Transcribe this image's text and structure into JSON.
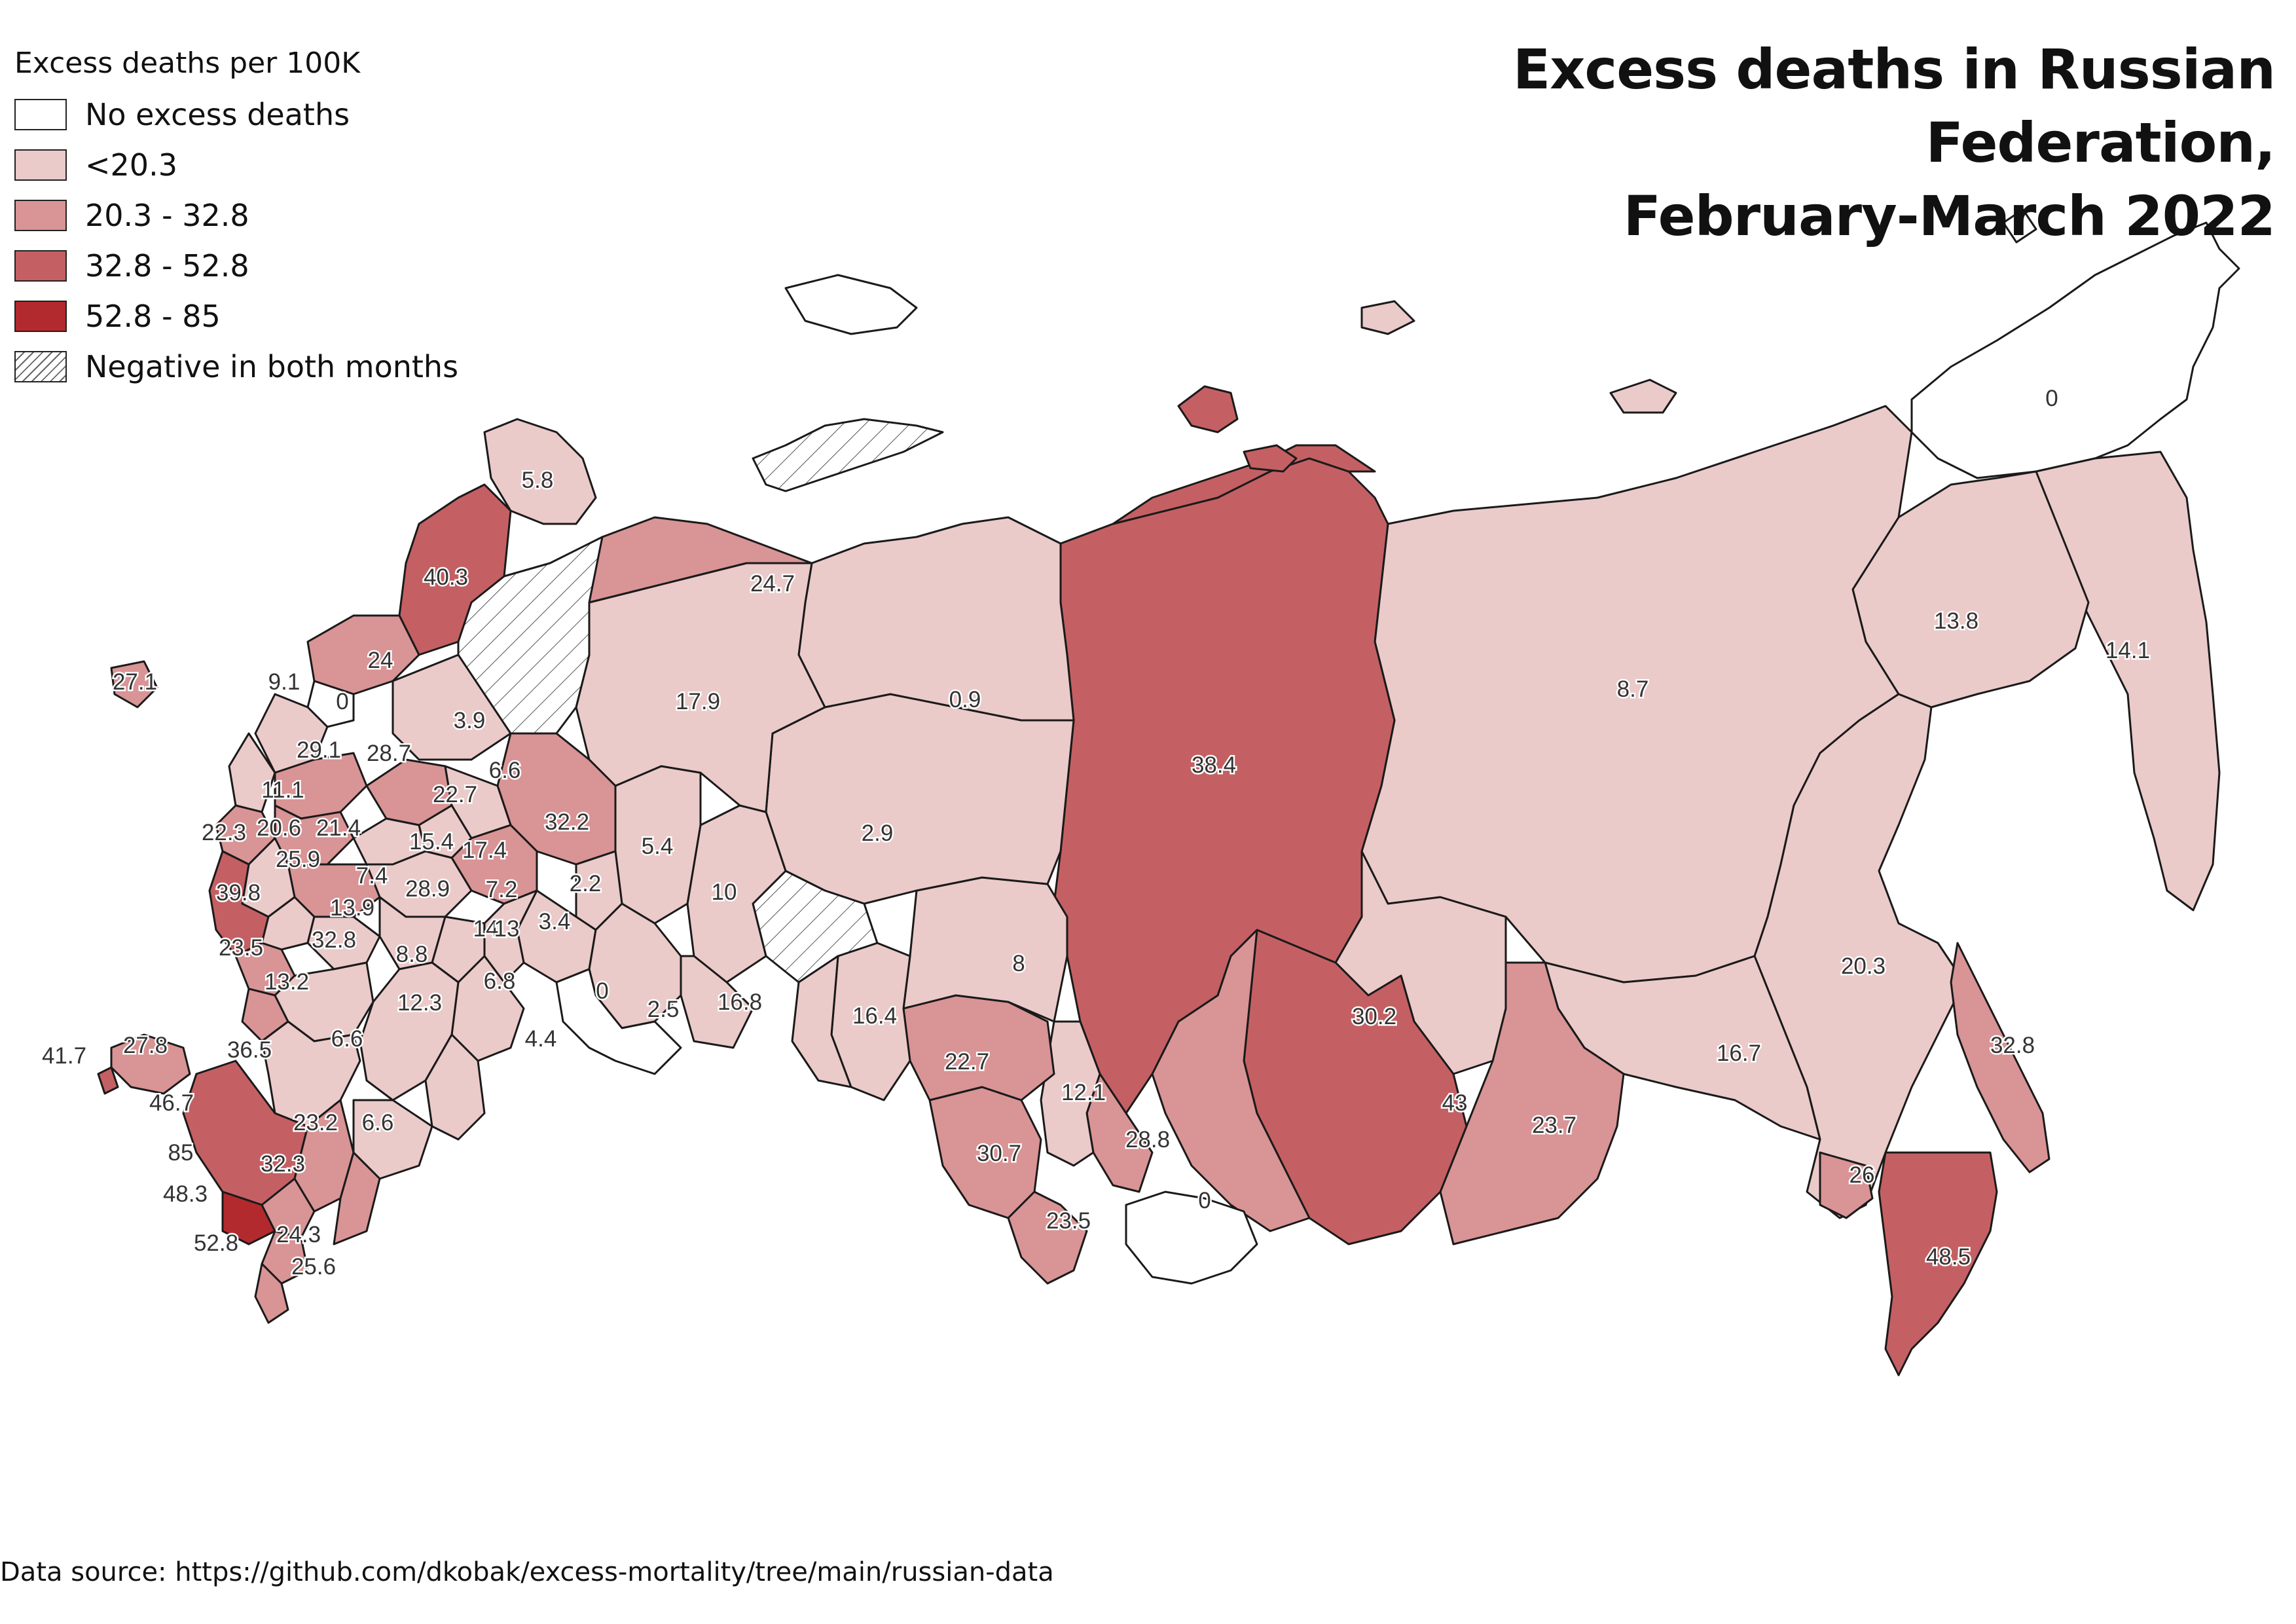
{
  "title_line1": "Excess deaths in Russian Federation,",
  "title_line2": "February-March 2022",
  "legend": {
    "title": "Excess deaths per 100K",
    "items": [
      {
        "label": "No excess deaths",
        "color": "#ffffff",
        "hatched": false
      },
      {
        "label": "<20.3",
        "color": "#ebcaca",
        "hatched": false
      },
      {
        "label": "20.3 - 32.8",
        "color": "#d99496",
        "hatched": false
      },
      {
        "label": "32.8 - 52.8",
        "color": "#c46063",
        "hatched": false
      },
      {
        "label": "52.8 - 85",
        "color": "#b22a2d",
        "hatched": false
      },
      {
        "label": "Negative in both months",
        "color": "#ffffff",
        "hatched": true
      }
    ]
  },
  "source": "Data source: https://github.com/dkobak/excess-mortality/tree/main/russian-data",
  "map_labels": [
    "0",
    "14.1",
    "13.8",
    "8.7",
    "38.4",
    "0.9",
    "2.9",
    "17.9",
    "24.7",
    "5.8",
    "40.3",
    "27.1",
    "9.1",
    "0",
    "24",
    "3.9",
    "29.1",
    "28.7",
    "6.6",
    "11.1",
    "22.7",
    "32.2",
    "22.3",
    "20.6",
    "21.4",
    "15.4",
    "17.4",
    "5.4",
    "25.9",
    "7.4",
    "7.2",
    "39.8",
    "13.9",
    "28.9",
    "2.2",
    "10",
    "14",
    "13",
    "3.4",
    "23.5",
    "32.8",
    "8.8",
    "6.8",
    "0",
    "2.5",
    "16.8",
    "16.4",
    "8",
    "30.2",
    "20.3",
    "13.2",
    "12.3",
    "4.4",
    "41.7",
    "27.8",
    "36.5",
    "6.6",
    "22.7",
    "12.1",
    "43",
    "23.7",
    "16.7",
    "32.8",
    "46.7",
    "23.2",
    "6.6",
    "85",
    "32.3",
    "30.7",
    "28.8",
    "48.3",
    "26",
    "23.5",
    "0",
    "52.8",
    "24.3",
    "48.5",
    "25.6"
  ]
}
